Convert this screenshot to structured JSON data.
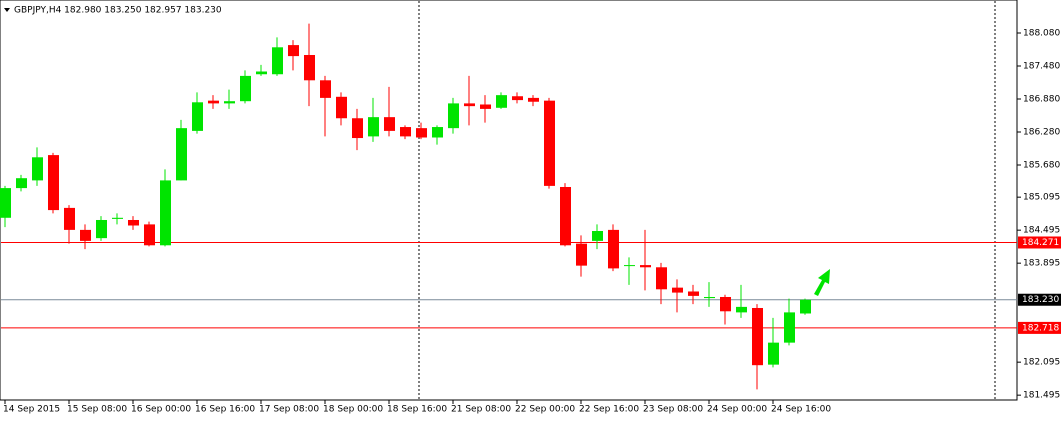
{
  "chart_data": {
    "type": "candlestick",
    "title": "GBPJPY,H4  182.980 183.250 182.957 183.230",
    "categories": [
      "14 Sep 2015",
      null,
      null,
      null,
      "15 Sep 08:00",
      null,
      null,
      null,
      "16 Sep 00:00",
      null,
      null,
      null,
      "16 Sep 16:00",
      null,
      null,
      null,
      "17 Sep 08:00",
      null,
      null,
      null,
      "18 Sep 00:00",
      null,
      null,
      null,
      "18 Sep 16:00",
      null,
      null,
      null,
      "21 Sep 08:00",
      null,
      null,
      null,
      "22 Sep 00:00",
      null,
      null,
      null,
      "22 Sep 16:00",
      null,
      null,
      null,
      "23 Sep 08:00",
      null,
      null,
      null,
      "24 Sep 00:00",
      null,
      null,
      null,
      "24 Sep 16:00",
      null,
      null
    ],
    "open": [
      184.72,
      185.26,
      185.4,
      185.86,
      184.9,
      184.5,
      184.35,
      184.7,
      184.68,
      184.6,
      184.22,
      185.4,
      186.3,
      186.85,
      186.8,
      186.84,
      187.33,
      187.33,
      187.86,
      187.68,
      187.22,
      186.92,
      186.53,
      186.2,
      186.55,
      186.37,
      186.35,
      186.18,
      186.35,
      186.8,
      186.78,
      186.72,
      186.93,
      186.9,
      186.85,
      185.28,
      184.25,
      184.3,
      184.5,
      183.85,
      183.86,
      183.82,
      183.45,
      183.38,
      183.26,
      183.28,
      183.0,
      183.08,
      182.05,
      182.45,
      182.98
    ],
    "high": [
      185.3,
      185.5,
      186.0,
      185.9,
      184.95,
      184.6,
      184.75,
      184.8,
      184.75,
      184.65,
      185.6,
      186.5,
      187.0,
      186.95,
      187.05,
      187.4,
      187.5,
      188.0,
      187.95,
      188.25,
      187.3,
      187.0,
      186.7,
      186.9,
      187.1,
      186.4,
      186.45,
      186.4,
      186.9,
      187.3,
      186.95,
      187.0,
      187.0,
      186.95,
      186.9,
      185.35,
      184.4,
      184.6,
      184.6,
      184.0,
      184.5,
      183.9,
      183.6,
      183.5,
      183.55,
      183.32,
      183.5,
      183.15,
      182.9,
      183.25,
      183.25
    ],
    "low": [
      184.55,
      185.2,
      185.3,
      184.8,
      184.25,
      184.15,
      184.3,
      184.6,
      184.5,
      184.2,
      184.2,
      185.4,
      186.25,
      186.7,
      186.7,
      186.8,
      187.3,
      187.3,
      187.4,
      186.75,
      186.2,
      186.4,
      185.95,
      186.1,
      186.2,
      186.15,
      186.15,
      186.05,
      186.25,
      186.4,
      186.45,
      186.7,
      186.8,
      186.75,
      185.25,
      184.2,
      183.65,
      184.15,
      183.75,
      183.5,
      183.4,
      183.15,
      183.0,
      183.15,
      183.1,
      182.78,
      182.9,
      181.6,
      182.0,
      182.4,
      182.957
    ],
    "close": [
      185.26,
      185.44,
      185.82,
      184.86,
      184.5,
      184.3,
      184.68,
      184.72,
      184.58,
      184.22,
      185.4,
      186.35,
      186.82,
      186.8,
      186.84,
      187.3,
      187.38,
      187.82,
      187.66,
      187.22,
      186.9,
      186.53,
      186.17,
      186.55,
      186.3,
      186.2,
      186.18,
      186.37,
      186.8,
      186.75,
      186.7,
      186.95,
      186.86,
      186.83,
      185.3,
      184.22,
      183.85,
      184.48,
      183.8,
      183.86,
      183.82,
      183.42,
      183.36,
      183.3,
      183.28,
      183.02,
      183.1,
      182.04,
      182.45,
      183.0,
      183.23
    ],
    "up_color": "#00e400",
    "down_color": "#ff0000",
    "ylim": [
      181.407,
      188.68
    ],
    "yticks": [
      {
        "value": 188.08,
        "label": "188.080"
      },
      {
        "value": 187.48,
        "label": "187.480"
      },
      {
        "value": 186.88,
        "label": "186.880"
      },
      {
        "value": 186.28,
        "label": "186.280"
      },
      {
        "value": 185.68,
        "label": "185.680"
      },
      {
        "value": 185.095,
        "label": "185.095"
      },
      {
        "value": 184.495,
        "label": "184.495"
      },
      {
        "value": 183.895,
        "label": "183.895"
      },
      {
        "value": 182.095,
        "label": "182.095"
      },
      {
        "value": 181.495,
        "label": "181.495"
      }
    ],
    "levels": [
      {
        "value": 184.271,
        "color": "#ff0000"
      },
      {
        "value": {
          "value": 183.23,
          "label": "183.230"
        },
        "color": "#000000"
      },
      {
        "value": 182.718,
        "color": "#ff0000"
      }
    ]
  }
}
